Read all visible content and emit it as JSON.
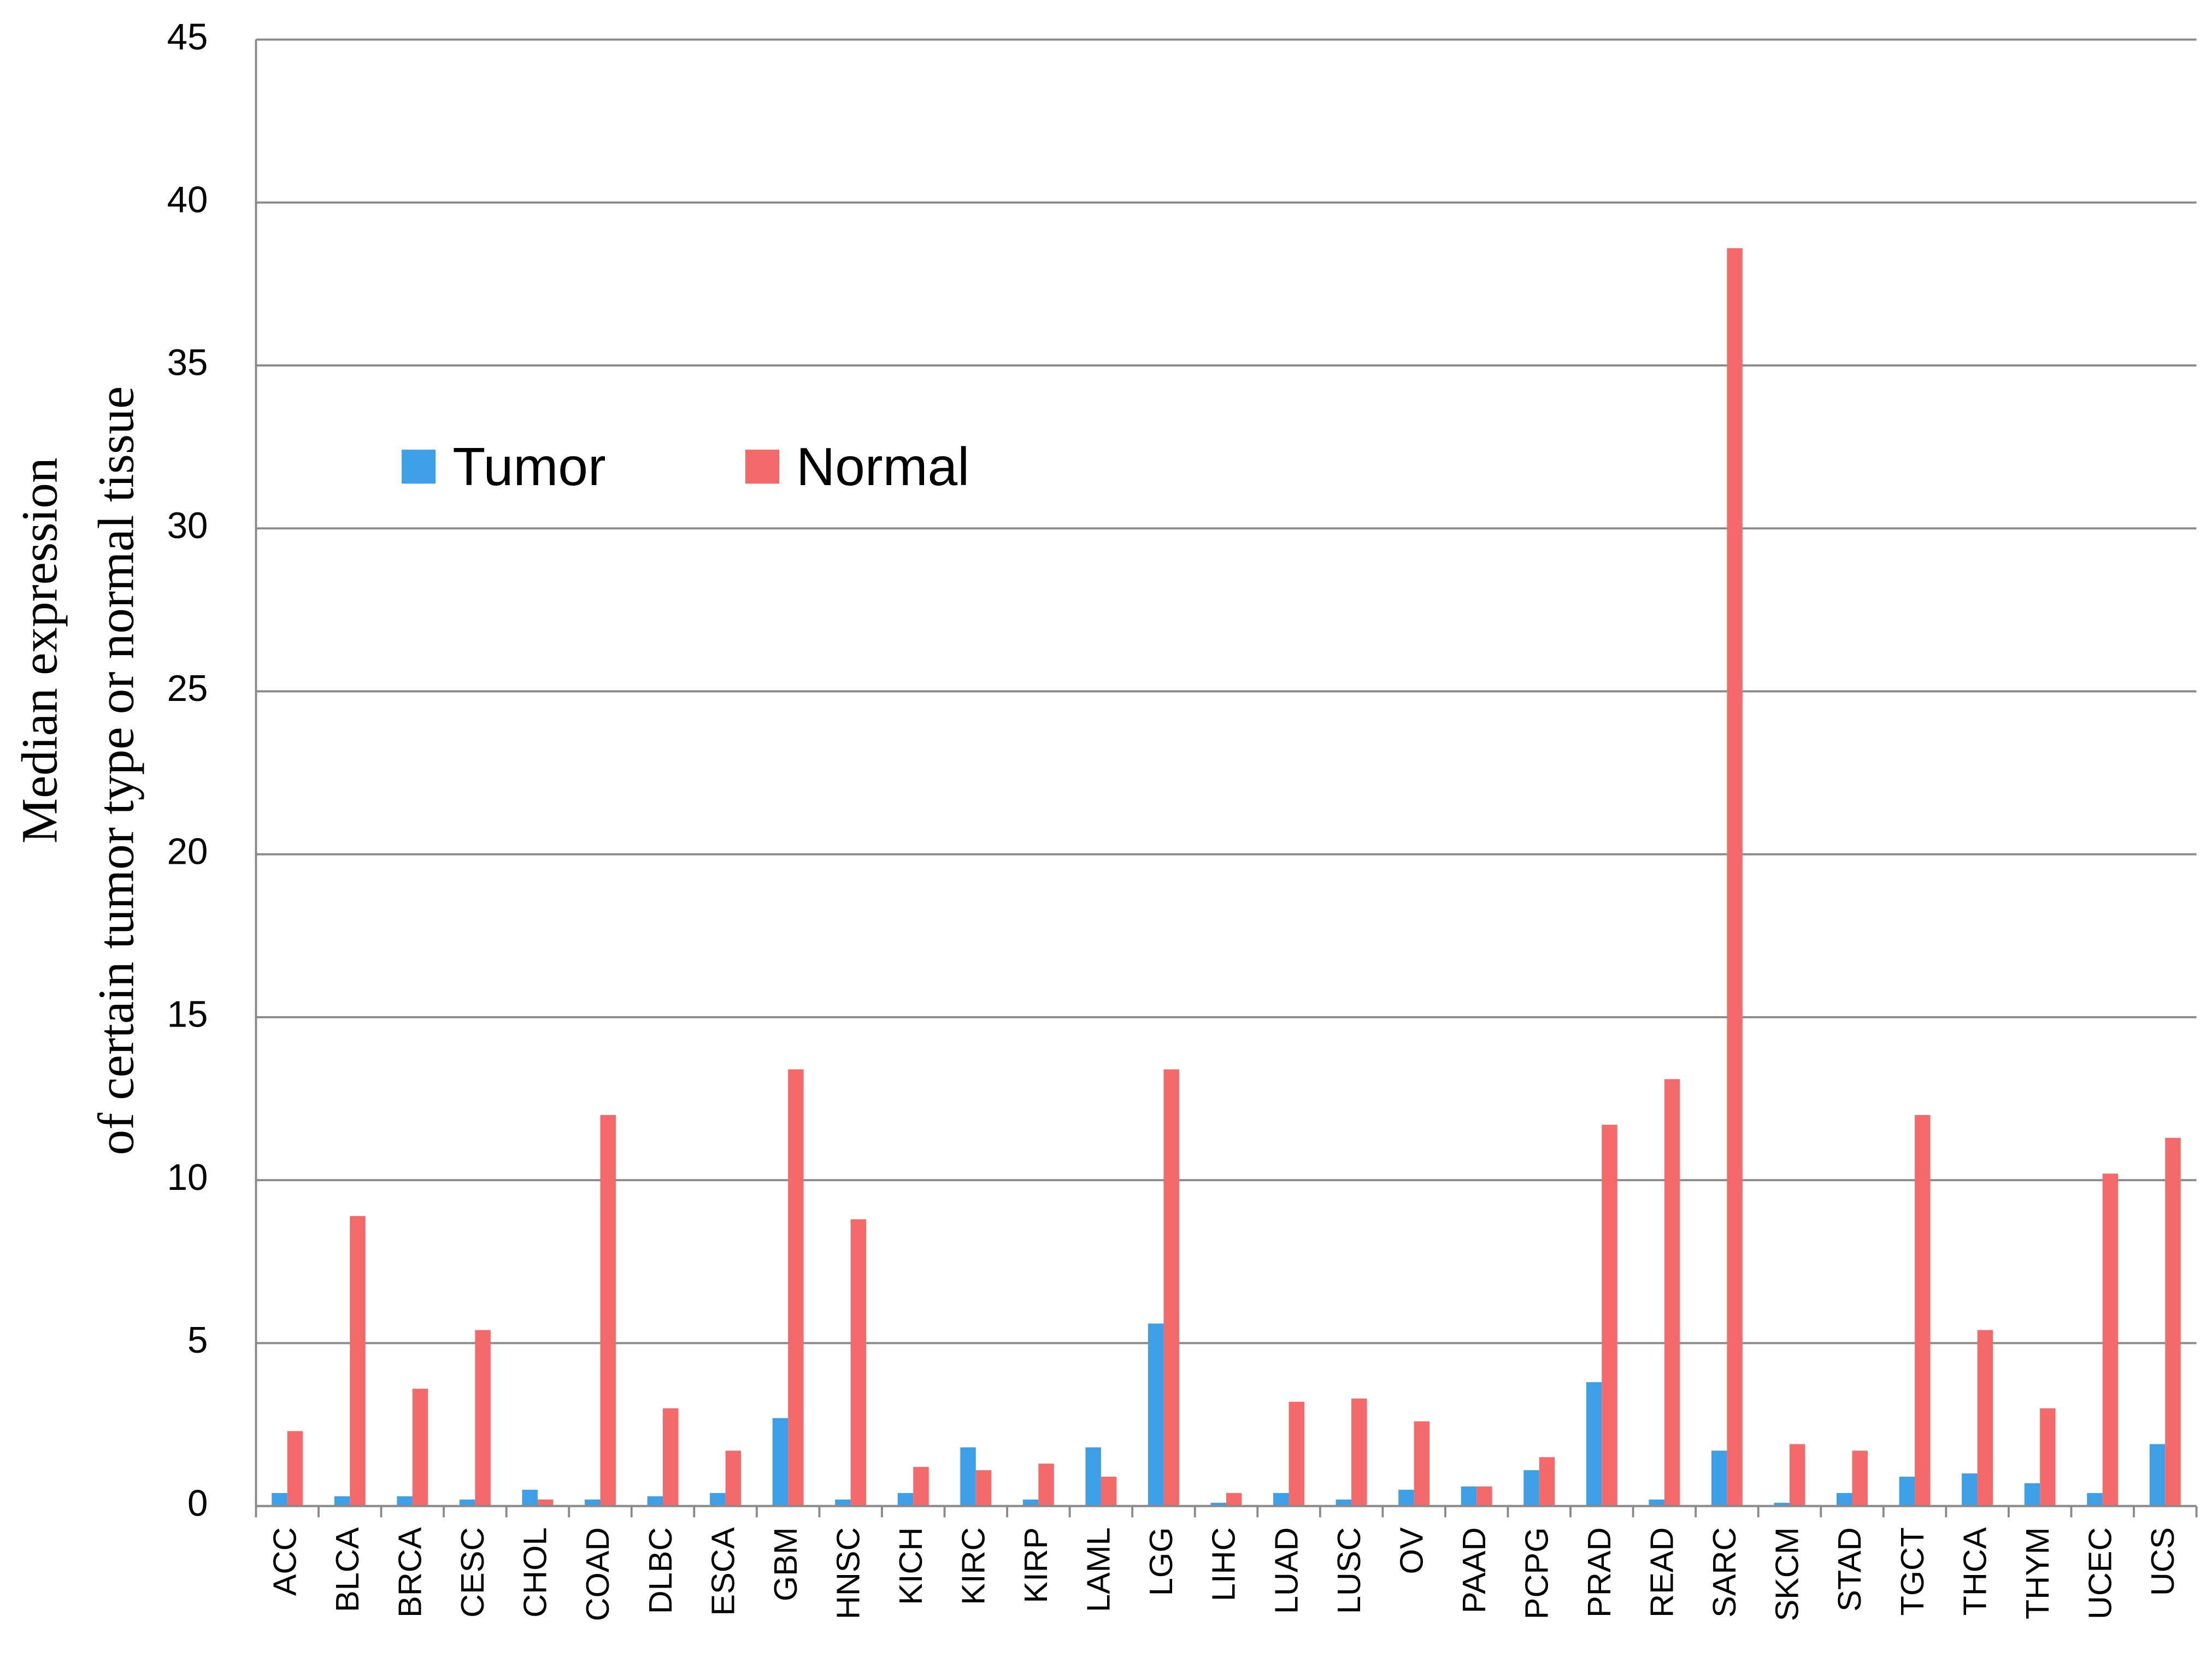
{
  "chart_data": {
    "type": "bar",
    "y_label": [
      "Median expression",
      "of certain tumor type or normal tissue"
    ],
    "categories": [
      "ACC",
      "BLCA",
      "BRCA",
      "CESC",
      "CHOL",
      "COAD",
      "DLBC",
      "ESCA",
      "GBM",
      "HNSC",
      "KICH",
      "KIRC",
      "KIRP",
      "LAML",
      "LGG",
      "LIHC",
      "LUAD",
      "LUSC",
      "OV",
      "PAAD",
      "PCPG",
      "PRAD",
      "READ",
      "SARC",
      "SKCM",
      "STAD",
      "TGCT",
      "THCA",
      "THYM",
      "UCEC",
      "UCS"
    ],
    "series": [
      {
        "name": "Tumor",
        "color": "#3d9fe6",
        "values": [
          0.4,
          0.3,
          0.3,
          0.2,
          0.5,
          0.2,
          0.3,
          0.4,
          2.7,
          0.2,
          0.4,
          1.8,
          0.2,
          1.8,
          5.6,
          0.1,
          0.4,
          0.2,
          0.5,
          0.6,
          1.1,
          3.8,
          0.2,
          1.7,
          0.1,
          0.4,
          0.9,
          1.0,
          0.7,
          0.4,
          1.9
        ]
      },
      {
        "name": "Normal",
        "color": "#f46a6a",
        "values": [
          2.3,
          8.9,
          3.6,
          5.4,
          0.2,
          12.0,
          3.0,
          1.7,
          13.4,
          8.8,
          1.2,
          1.1,
          1.3,
          0.9,
          13.4,
          0.4,
          3.2,
          3.3,
          2.6,
          0.6,
          1.5,
          11.7,
          13.1,
          38.6,
          1.9,
          1.7,
          12.0,
          5.4,
          3.0,
          10.2,
          11.3
        ]
      }
    ],
    "ylim": [
      0,
      45
    ],
    "yticks": [
      0,
      5,
      10,
      15,
      20,
      25,
      30,
      35,
      40,
      45
    ],
    "grid": true
  }
}
